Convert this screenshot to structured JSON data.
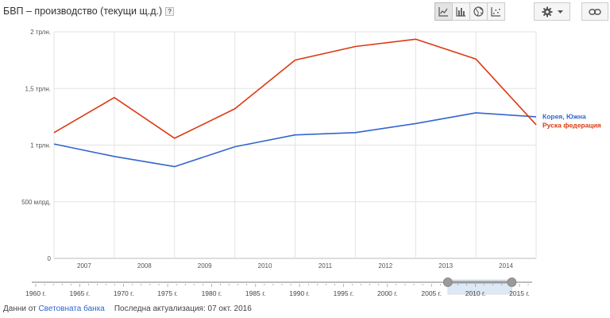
{
  "header": {
    "title": "БВП – производство (текущи щ.д.)",
    "help_label": "?"
  },
  "toolbar": {
    "buttons": [
      {
        "icon": "line-chart-icon",
        "active": true
      },
      {
        "icon": "bar-chart-icon",
        "active": false
      },
      {
        "icon": "globe-icon",
        "active": false
      },
      {
        "icon": "scatter-chart-icon",
        "active": false
      }
    ],
    "settings_icon": "gear-icon",
    "dropdown_icon": "caret-down-icon",
    "link_icon": "link-icon"
  },
  "chart_data": {
    "type": "line",
    "title": "",
    "xlabel": "",
    "ylabel": "",
    "categories": [
      "2007",
      "2008",
      "2009",
      "2010",
      "2011",
      "2012",
      "2013",
      "2014"
    ],
    "x": [
      2006.5,
      2007.5,
      2008.5,
      2009.5,
      2010.5,
      2011.5,
      2012.5,
      2013.5,
      2014.5
    ],
    "xlim": [
      2006.5,
      2014.5
    ],
    "ylim": [
      0,
      2000
    ],
    "y_unit": "млрд.",
    "y_ticks": [
      {
        "value": 0,
        "label": "0"
      },
      {
        "value": 500,
        "label": "500 млрд."
      },
      {
        "value": 1000,
        "label": "1 трлн."
      },
      {
        "value": 1500,
        "label": "1,5 трлн."
      },
      {
        "value": 2000,
        "label": "2 трлн."
      }
    ],
    "grid": true,
    "legend_placement": "right, at line ends",
    "series": [
      {
        "name": "Корея, Южна",
        "color": "#3366cc",
        "values": [
          1010,
          900,
          810,
          985,
          1090,
          1110,
          1190,
          1285,
          1250
        ]
      },
      {
        "name": "Руска федерация",
        "color": "#dc3912",
        "values": [
          1110,
          1420,
          1060,
          1320,
          1750,
          1870,
          1935,
          1760,
          1180
        ]
      }
    ],
    "timeline": {
      "labels": [
        "1960 г.",
        "1965 г.",
        "1970 г.",
        "1975 г.",
        "1980 г.",
        "1985 г.",
        "1990 г.",
        "1995 г.",
        "2000 г.",
        "2005 г.",
        "2010 г.",
        "2015 г."
      ],
      "range_start": 1960,
      "range_end": 2016,
      "selection": [
        2006.5,
        2014.5
      ],
      "selection_color": "#dde9f5"
    }
  },
  "footer": {
    "source_prefix": "Данни от",
    "source_link": "Световната банка",
    "last_update": "Последна актуализация: 07 окт. 2016"
  }
}
